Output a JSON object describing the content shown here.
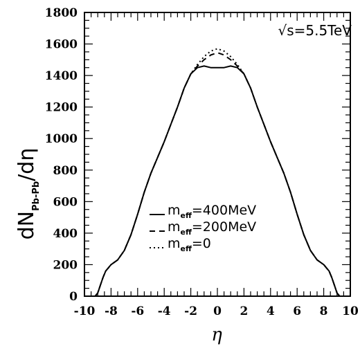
{
  "chart_data": {
    "type": "line",
    "title": "",
    "xlabel": "η",
    "ylabel": {
      "main_left": "dN",
      "subscript": "Pb-Pb",
      "main_right": "/dη"
    },
    "xlim": [
      -10,
      10
    ],
    "ylim": [
      0,
      1800
    ],
    "xticks": [
      -10,
      -8,
      -6,
      -4,
      -2,
      0,
      2,
      4,
      6,
      8,
      10
    ],
    "yticks": [
      0,
      200,
      400,
      600,
      800,
      1000,
      1200,
      1400,
      1600,
      1800
    ],
    "annotation": "√s=5.5TeV",
    "grid": false,
    "legend_position": "bottom-left",
    "x": [
      -10,
      -9.2,
      -9,
      -8.8,
      -8.6,
      -8.4,
      -8.2,
      -8,
      -7.5,
      -7,
      -6.5,
      -6,
      -5.5,
      -5,
      -4.5,
      -4,
      -3.5,
      -3,
      -2.5,
      -2,
      -1.5,
      -1,
      -0.5,
      0,
      0.5,
      1,
      1.5,
      2,
      2.5,
      3,
      3.5,
      4,
      4.5,
      5,
      5.5,
      6,
      6.5,
      7,
      7.5,
      8,
      8.2,
      8.4,
      8.6,
      8.8,
      9,
      9.2,
      10
    ],
    "series": [
      {
        "name": "m_eff=400MeV",
        "legend_main": "m",
        "legend_sub": "eff",
        "legend_value": "=400MeV",
        "style": "solid",
        "values": [
          0,
          0,
          20,
          70,
          120,
          160,
          180,
          200,
          230,
          290,
          390,
          520,
          660,
          780,
          880,
          980,
          1090,
          1200,
          1320,
          1410,
          1450,
          1460,
          1450,
          1450,
          1450,
          1460,
          1450,
          1410,
          1320,
          1200,
          1090,
          980,
          880,
          780,
          660,
          520,
          390,
          290,
          230,
          200,
          180,
          160,
          120,
          70,
          20,
          0,
          0
        ]
      },
      {
        "name": "m_eff=200MeV",
        "legend_main": "m",
        "legend_sub": "eff",
        "legend_value": "=200MeV",
        "style": "dashed",
        "values": [
          0,
          0,
          20,
          70,
          120,
          160,
          180,
          200,
          230,
          290,
          390,
          520,
          660,
          780,
          880,
          980,
          1090,
          1200,
          1320,
          1410,
          1460,
          1500,
          1530,
          1545,
          1530,
          1500,
          1460,
          1410,
          1320,
          1200,
          1090,
          980,
          880,
          780,
          660,
          520,
          390,
          290,
          230,
          200,
          180,
          160,
          120,
          70,
          20,
          0,
          0
        ]
      },
      {
        "name": "m_eff=0",
        "legend_main": "m",
        "legend_sub": "eff",
        "legend_value": "=0",
        "style": "dotted",
        "values": [
          0,
          0,
          20,
          70,
          120,
          160,
          180,
          200,
          230,
          290,
          390,
          520,
          660,
          780,
          880,
          980,
          1090,
          1200,
          1320,
          1410,
          1470,
          1520,
          1555,
          1570,
          1555,
          1520,
          1470,
          1410,
          1320,
          1200,
          1090,
          980,
          880,
          780,
          660,
          520,
          390,
          290,
          230,
          200,
          180,
          160,
          120,
          70,
          20,
          0,
          0
        ]
      }
    ]
  }
}
